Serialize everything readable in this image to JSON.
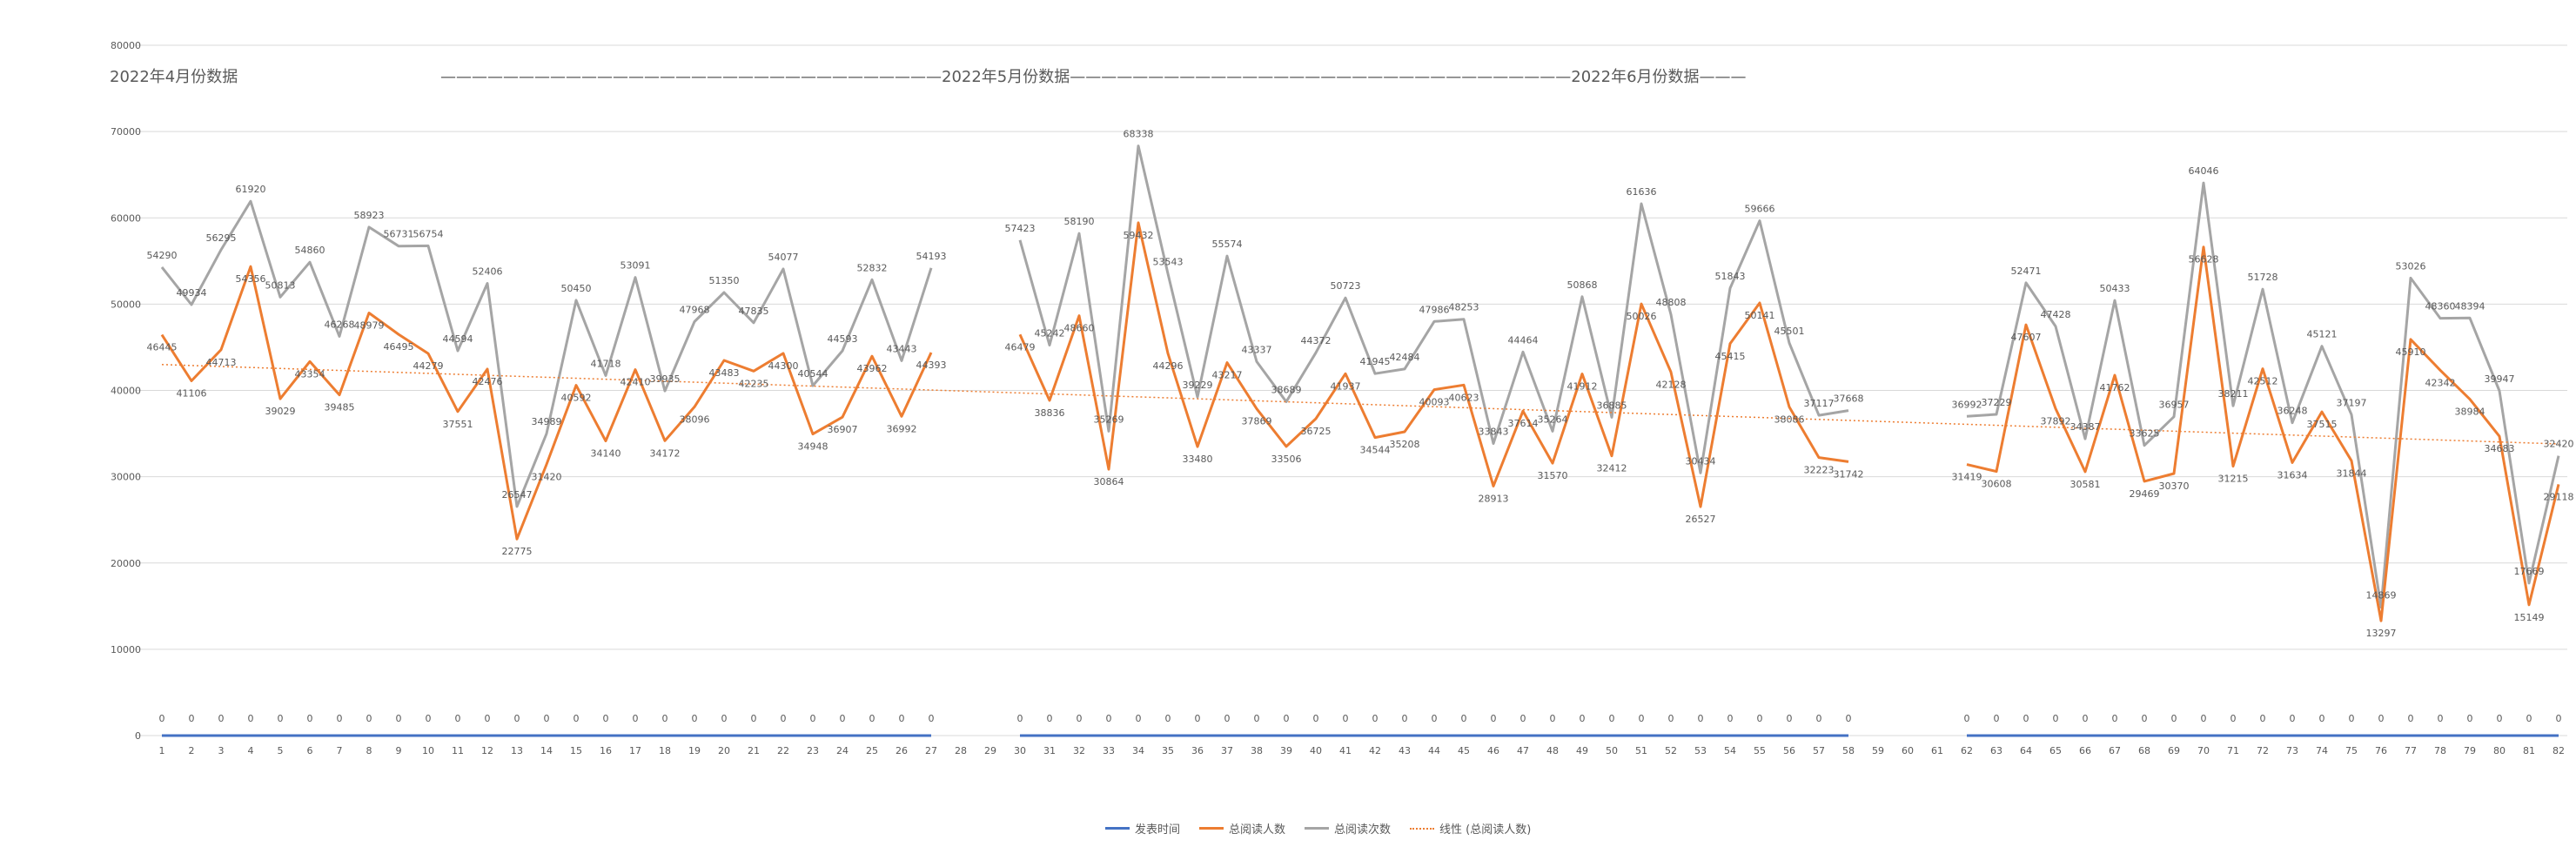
{
  "colors": {
    "publish": "#4472C4",
    "readers": "#ED7D31",
    "reads": "#A5A5A5",
    "trend": "#ED7D31",
    "grid": "#D9D9D9",
    "text": "#595959"
  },
  "section_titles": [
    "2022年4月份数据",
    "————————————————————————————————2022年5月份数据————————————————————————————————2022年6月份数据———"
  ],
  "legend": [
    {
      "label": "发表时间",
      "color": "#4472C4",
      "style": "solid"
    },
    {
      "label": "总阅读人数",
      "color": "#ED7D31",
      "style": "solid"
    },
    {
      "label": "总阅读次数",
      "color": "#A5A5A5",
      "style": "solid"
    },
    {
      "label": "线性 (总阅读人数)",
      "color": "#ED7D31",
      "style": "dotted"
    }
  ],
  "chart_data": {
    "type": "line",
    "ylim": [
      0,
      80000
    ],
    "yticks": [
      0,
      10000,
      20000,
      30000,
      40000,
      50000,
      60000,
      70000,
      80000
    ],
    "x": [
      1,
      2,
      3,
      4,
      5,
      6,
      7,
      8,
      9,
      10,
      11,
      12,
      13,
      14,
      15,
      16,
      17,
      18,
      19,
      20,
      21,
      22,
      23,
      24,
      25,
      26,
      27,
      28,
      29,
      30,
      31,
      32,
      33,
      34,
      35,
      36,
      37,
      38,
      39,
      40,
      41,
      42,
      43,
      44,
      45,
      46,
      47,
      48,
      49,
      50,
      51,
      52,
      53,
      54,
      55,
      56,
      57,
      58,
      59,
      60,
      61,
      62,
      63,
      64,
      65,
      66,
      67,
      68,
      69,
      70,
      71,
      72,
      73,
      74,
      75,
      76,
      77,
      78,
      79,
      80,
      81,
      82
    ],
    "grid": true,
    "legend_position": "bottom",
    "trendline": {
      "series": "总阅读人数",
      "type": "linear",
      "start": 43000,
      "end": 33800
    },
    "series": [
      {
        "name": "发表时间",
        "values": [
          0,
          0,
          0,
          0,
          0,
          0,
          0,
          0,
          0,
          0,
          0,
          0,
          0,
          0,
          0,
          0,
          0,
          0,
          0,
          0,
          0,
          0,
          0,
          0,
          0,
          0,
          0,
          null,
          null,
          0,
          0,
          0,
          0,
          0,
          0,
          0,
          0,
          0,
          0,
          0,
          0,
          0,
          0,
          0,
          0,
          0,
          0,
          0,
          0,
          0,
          0,
          0,
          0,
          0,
          0,
          0,
          0,
          0,
          null,
          null,
          null,
          0,
          0,
          0,
          0,
          0,
          0,
          0,
          0,
          0,
          0,
          0,
          0,
          0,
          0,
          0,
          0,
          0,
          0,
          0,
          0,
          0
        ]
      },
      {
        "name": "总阅读人数",
        "values": [
          46445,
          41106,
          44713,
          54356,
          39029,
          43354,
          39485,
          48979,
          46495,
          44279,
          37551,
          42476,
          22775,
          31420,
          40592,
          34140,
          42410,
          34172,
          38096,
          43483,
          42235,
          44300,
          34948,
          36907,
          43962,
          36992,
          44393,
          null,
          null,
          46479,
          38836,
          48660,
          30864,
          59432,
          44296,
          33480,
          43217,
          37869,
          33506,
          36725,
          41937,
          34544,
          35208,
          40093,
          40623,
          28913,
          37614,
          31570,
          41912,
          32412,
          50026,
          42128,
          26527,
          45415,
          50141,
          38086,
          32223,
          31742,
          null,
          null,
          null,
          31419,
          30608,
          47607,
          37892,
          30581,
          41762,
          29469,
          30370,
          56628,
          31215,
          42512,
          31634,
          37515,
          31844,
          13297,
          45910,
          42342,
          38984,
          34683,
          15149,
          29118
        ]
      },
      {
        "name": "总阅读次数",
        "values": [
          54290,
          49934,
          56295,
          61920,
          50813,
          54860,
          46268,
          58923,
          56731,
          56754,
          44594,
          52406,
          26547,
          34989,
          50450,
          41718,
          53091,
          39935,
          47968,
          51350,
          47835,
          54077,
          40544,
          44593,
          52832,
          43443,
          54193,
          null,
          null,
          57423,
          45242,
          58190,
          35269,
          68338,
          53543,
          39229,
          55574,
          43337,
          38689,
          44372,
          50723,
          41945,
          42484,
          47986,
          48253,
          33843,
          44464,
          35264,
          50868,
          36885,
          61636,
          48808,
          30434,
          51843,
          59666,
          45501,
          37117,
          37668,
          null,
          null,
          null,
          36992,
          37229,
          52471,
          47428,
          34387,
          50433,
          33625,
          36957,
          64046,
          38211,
          51728,
          36248,
          45121,
          37197,
          14869,
          53026,
          48360,
          48394,
          39947,
          17669,
          32420
        ]
      }
    ]
  }
}
